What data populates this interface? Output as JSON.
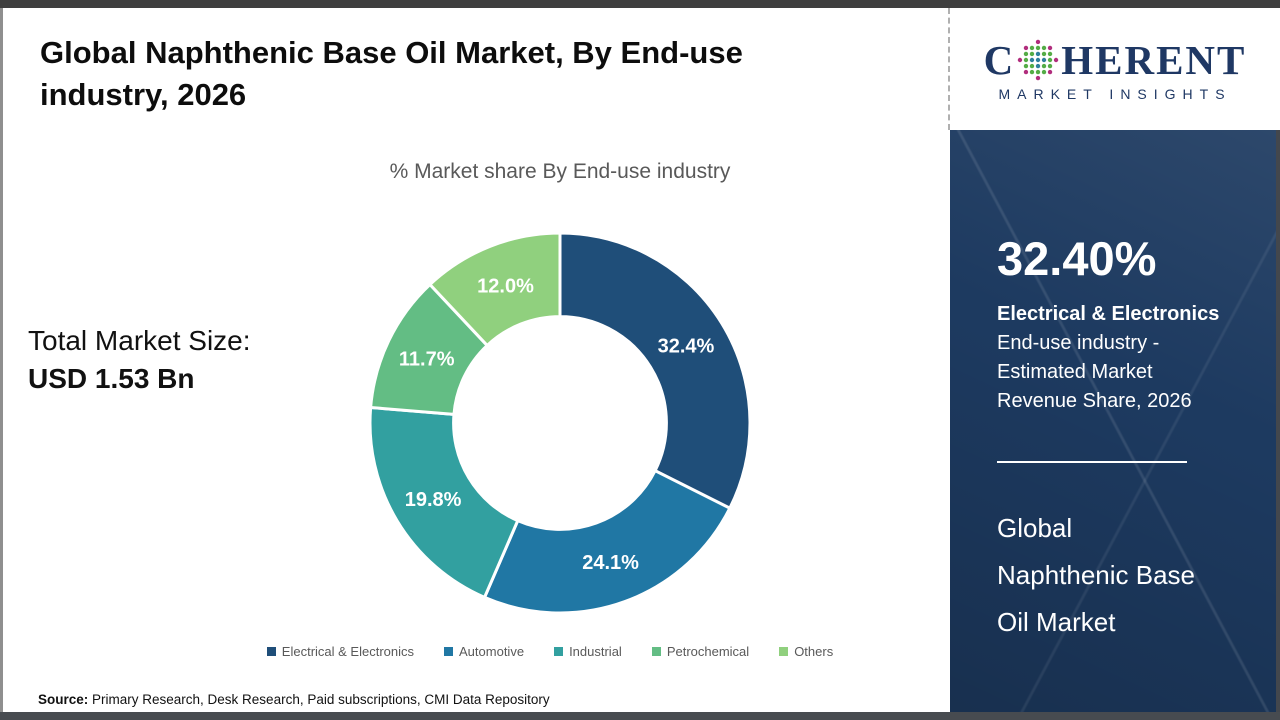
{
  "page": {
    "title": "Global Naphthenic Base Oil Market, By End-use industry, 2026",
    "subtitle": "% Market share By End-use industry",
    "total_market_label": "Total Market Size:",
    "total_market_value": "USD 1.53 Bn",
    "source_label": "Source:",
    "source_text": " Primary Research, Desk Research, Paid subscriptions, CMI Data Repository"
  },
  "logo": {
    "name_part1": "C",
    "name_part2": "HERENT",
    "tagline": "MARKET INSIGHTS",
    "brand_color": "#1f3864"
  },
  "sidebar": {
    "stat_value": "32.40%",
    "stat_title": "Electrical & Electronics",
    "stat_desc": "End-use industry - Estimated Market Revenue Share, 2026",
    "market_name": "Global Naphthenic Base Oil Market",
    "bg_color": "#1d3a60"
  },
  "chart_data": {
    "type": "pie",
    "subtype": "donut",
    "title": "% Market share By End-use industry",
    "categories": [
      "Electrical & Electronics",
      "Automotive",
      "Industrial",
      "Petrochemical",
      "Others"
    ],
    "values": [
      32.4,
      24.1,
      19.8,
      11.7,
      12.0
    ],
    "labels": [
      "32.4%",
      "24.1%",
      "19.8%",
      "11.7%",
      "12.0%"
    ],
    "colors": [
      "#1f4e79",
      "#2077a4",
      "#32a0a0",
      "#63bd84",
      "#90d07e"
    ],
    "start_angle_deg": 0,
    "direction": "clockwise",
    "inner_radius_ratio": 0.56,
    "legend_position": "bottom",
    "total_market_size": "USD 1.53 Bn"
  }
}
